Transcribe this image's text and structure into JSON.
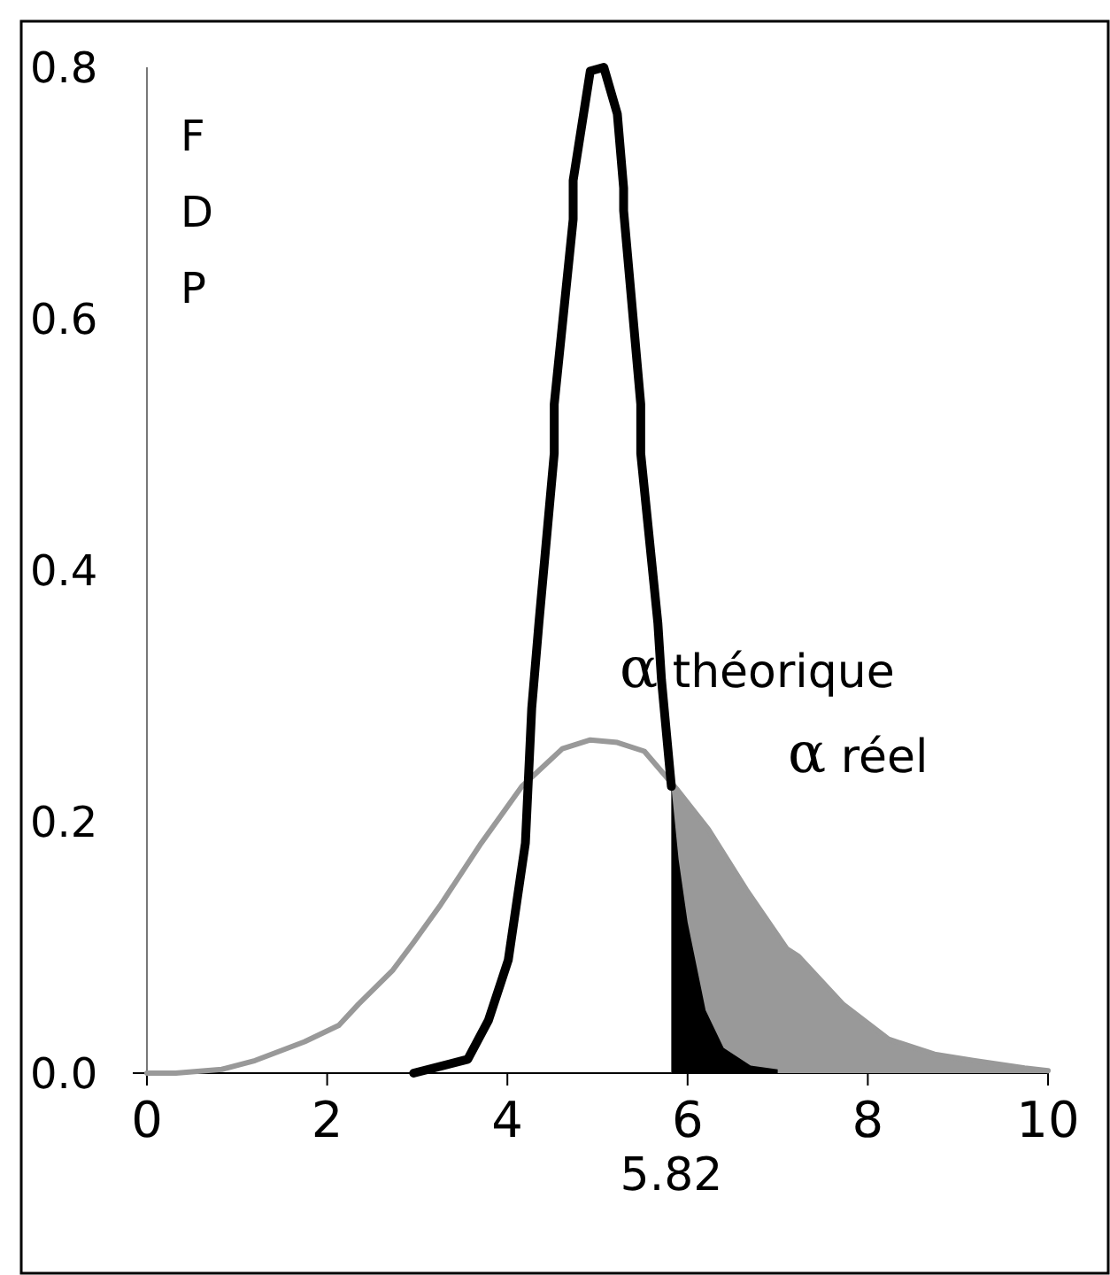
{
  "chart_data": {
    "type": "line",
    "ylabel": "FDP",
    "xlim": [
      0,
      10
    ],
    "xticks": [
      0,
      2,
      4,
      6,
      8,
      10
    ],
    "ylim": [
      0,
      0.8
    ],
    "yticks": [
      {
        "value": 0,
        "label": "0.0"
      },
      0.2,
      0.4,
      0.6,
      0.8
    ],
    "grid": false,
    "marker": "none",
    "line_style": "solid",
    "series": [
      {
        "type": "area",
        "color": "#999999",
        "x": [
          5.82,
          5.89,
          6.23,
          6.65,
          7.1,
          7.23,
          7.72,
          8.23,
          8.74,
          9.17,
          9.74,
          10
        ],
        "values": [
          0.228,
          0.225,
          0.194,
          0.146,
          0.099,
          0.093,
          0.055,
          0.027,
          0.015,
          0.01,
          0.004,
          0.002
        ]
      },
      {
        "type": "area",
        "color": "#000000",
        "x": [
          5.82,
          5.9,
          6.0,
          6.2,
          6.4,
          6.7,
          7.0
        ],
        "values": [
          0.228,
          0.17,
          0.12,
          0.05,
          0.02,
          0.006,
          0.003
        ]
      },
      {
        "color": "#999999",
        "x": [
          0,
          0.32,
          0.83,
          1.2,
          1.75,
          2.13,
          2.35,
          2.73,
          2.96,
          3.26,
          3.71,
          4.16,
          4.61,
          4.92,
          5.22,
          5.52,
          5.89,
          6.23,
          6.65,
          7.1,
          7.23,
          7.72,
          8.23,
          8.74,
          9.17,
          9.74,
          10
        ],
        "values": [
          0,
          0,
          0.003,
          0.01,
          0.025,
          0.038,
          0.055,
          0.082,
          0.104,
          0.134,
          0.183,
          0.228,
          0.258,
          0.265,
          0.263,
          0.256,
          0.225,
          0.194,
          0.146,
          0.099,
          0.093,
          0.055,
          0.027,
          0.015,
          0.01,
          0.004,
          0.002
        ]
      },
      {
        "color": "#000000",
        "x": [
          2.96,
          3.56,
          3.79,
          4.01,
          4.2,
          4.27,
          4.35,
          4.52,
          4.52,
          4.73,
          4.73,
          4.92,
          5.07,
          5.22,
          5.29,
          5.29,
          5.48,
          5.48,
          5.67,
          5.71,
          5.82
        ],
        "values": [
          0,
          0.011,
          0.042,
          0.09,
          0.183,
          0.29,
          0.358,
          0.493,
          0.532,
          0.679,
          0.71,
          0.797,
          0.8,
          0.763,
          0.704,
          0.686,
          0.532,
          0.493,
          0.358,
          0.313,
          0.228
        ]
      }
    ],
    "annotations": [
      "α théorique",
      "α réel",
      "5.82"
    ]
  }
}
